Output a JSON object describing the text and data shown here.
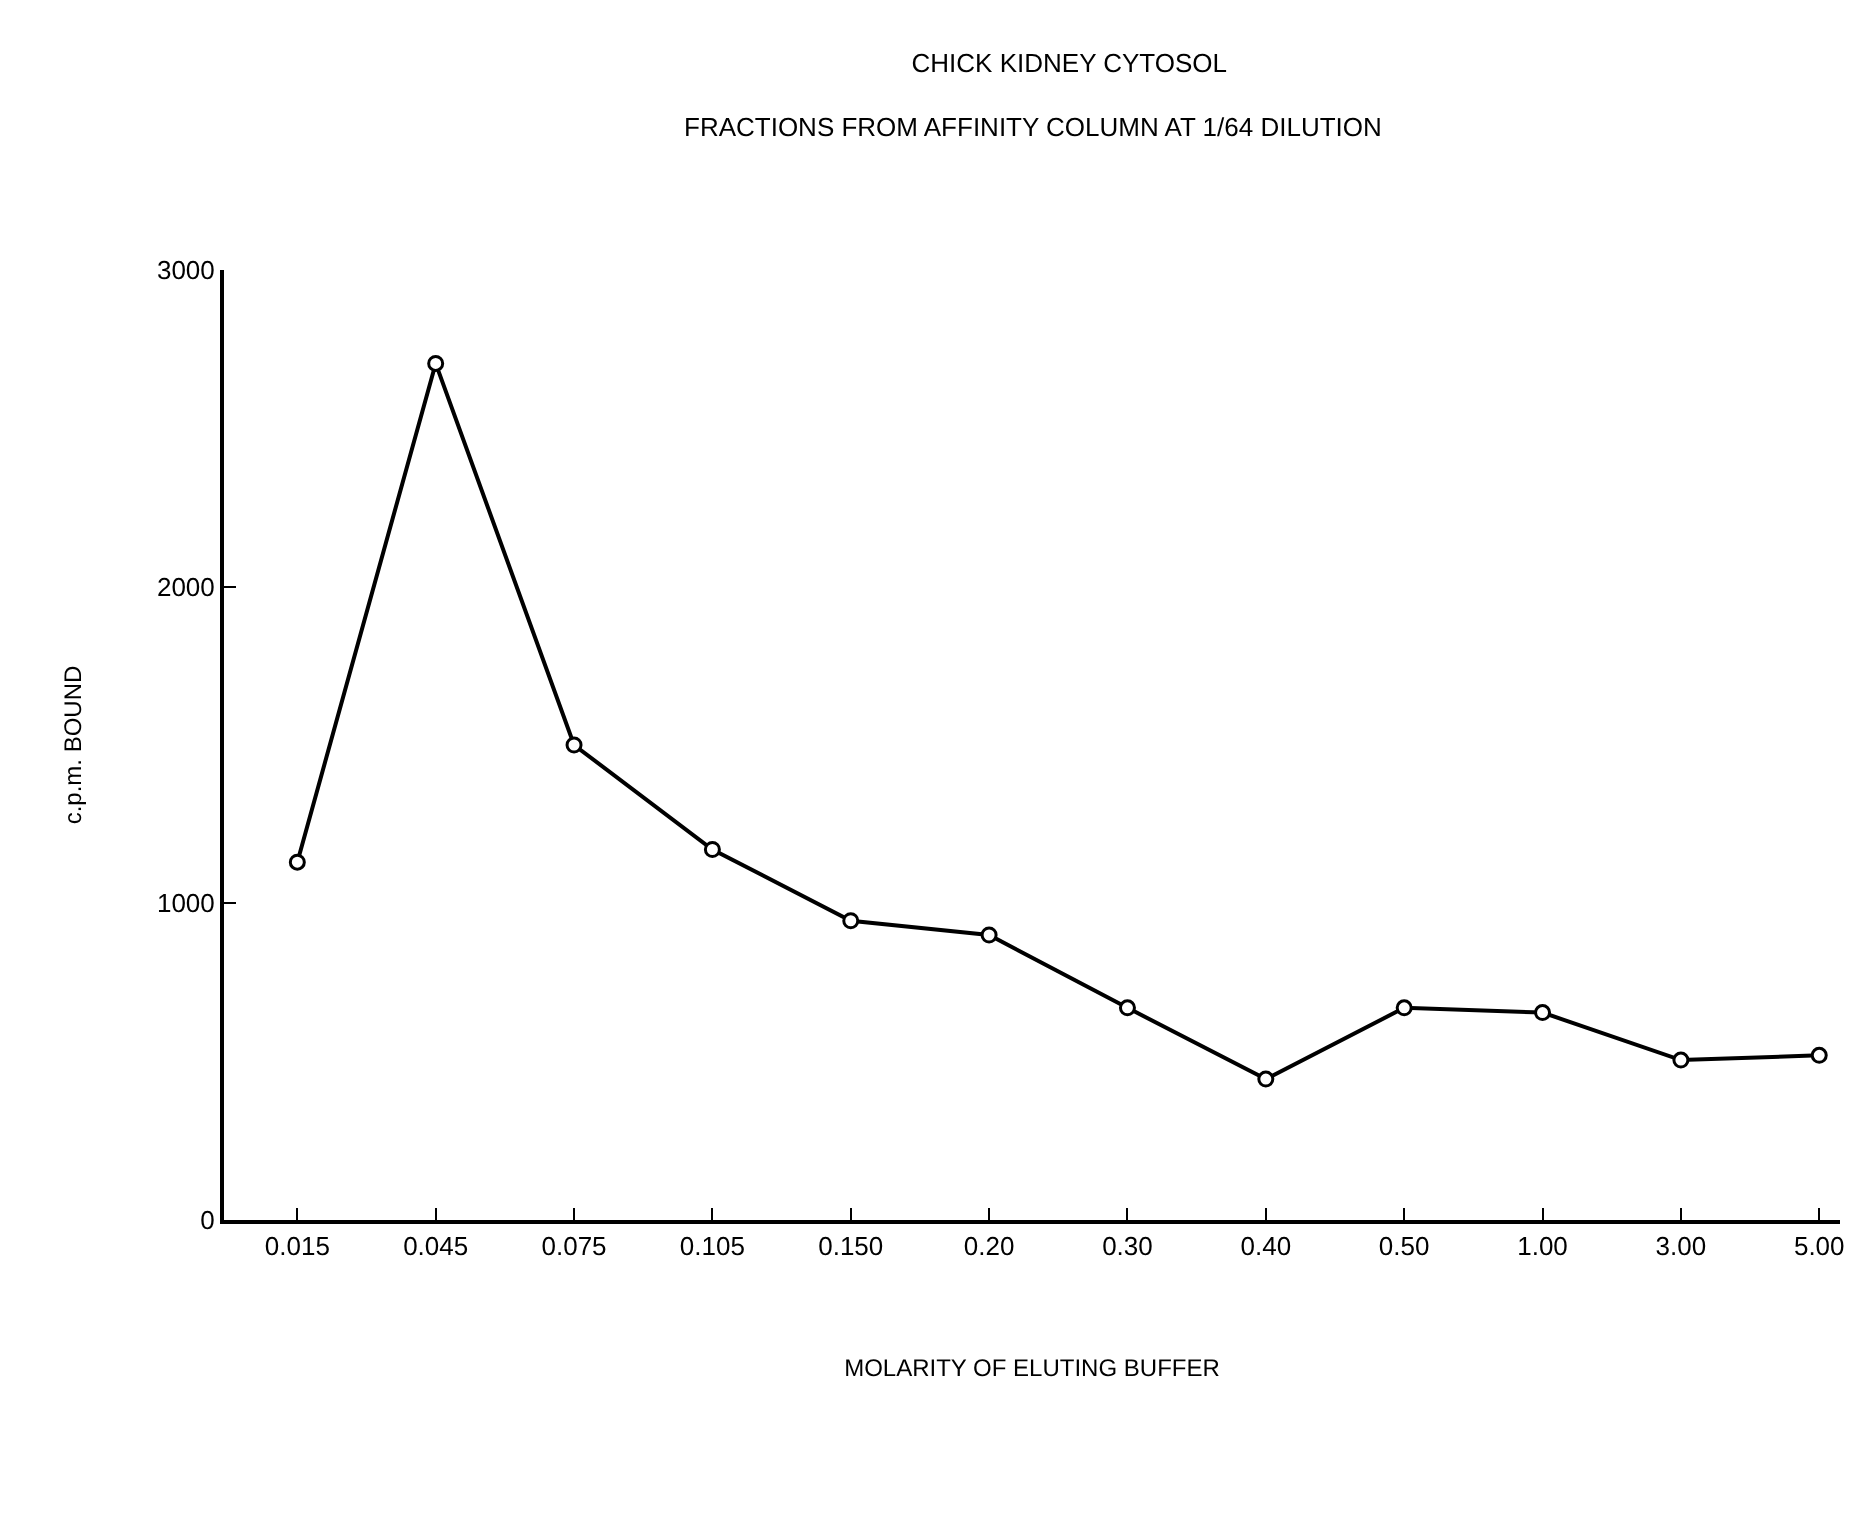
{
  "chart_data": {
    "type": "line",
    "title": "CHICK KIDNEY CYTOSOL",
    "subtitle": "FRACTIONS FROM AFFINITY COLUMN AT 1/64 DILUTION",
    "xlabel": "MOLARITY OF ELUTING BUFFER",
    "ylabel": "c.p.m. BOUND",
    "categories": [
      "0.015",
      "0.045",
      "0.075",
      "0.105",
      "0.150",
      "0.20",
      "0.30",
      "0.40",
      "0.50",
      "1.00",
      "3.00",
      "5.00"
    ],
    "series": [
      {
        "color": "#000000",
        "values": [
          1130,
          2705,
          1500,
          1170,
          945,
          900,
          670,
          445,
          670,
          655,
          505,
          520
        ]
      }
    ],
    "ylim": [
      0,
      3000
    ],
    "yticks": [
      0,
      1000,
      2000,
      3000
    ],
    "grid": false,
    "marker": "circle",
    "line_style": "solid"
  }
}
